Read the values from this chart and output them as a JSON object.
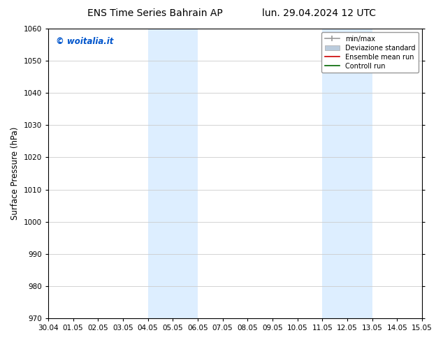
{
  "title_left": "ENS Time Series Bahrain AP",
  "title_right": "lun. 29.04.2024 12 UTC",
  "ylabel": "Surface Pressure (hPa)",
  "ylim": [
    970,
    1060
  ],
  "yticks": [
    970,
    980,
    990,
    1000,
    1010,
    1020,
    1030,
    1040,
    1050,
    1060
  ],
  "xtick_labels": [
    "30.04",
    "01.05",
    "02.05",
    "03.05",
    "04.05",
    "05.05",
    "06.05",
    "07.05",
    "08.05",
    "09.05",
    "10.05",
    "11.05",
    "12.05",
    "13.05",
    "14.05",
    "15.05"
  ],
  "shaded_bands": [
    {
      "xstart": 4,
      "xend": 6,
      "color": "#ddeeff"
    },
    {
      "xstart": 11,
      "xend": 13,
      "color": "#ddeeff"
    }
  ],
  "watermark_text": "© woitalia.it",
  "watermark_color": "#0055cc",
  "background_color": "#ffffff",
  "plot_bg_color": "#ffffff",
  "grid_color": "#cccccc",
  "title_fontsize": 10,
  "tick_fontsize": 7.5,
  "ylabel_fontsize": 8.5,
  "legend_items": [
    {
      "label": "min/max",
      "color": "#999999",
      "lw": 1.2,
      "ls": "-"
    },
    {
      "label": "Deviazione standard",
      "color": "#bbccdd",
      "lw": 6,
      "ls": "-"
    },
    {
      "label": "Ensemble mean run",
      "color": "#cc0000",
      "lw": 1.2,
      "ls": "-"
    },
    {
      "label": "Controll run",
      "color": "#006600",
      "lw": 1.2,
      "ls": "-"
    }
  ]
}
